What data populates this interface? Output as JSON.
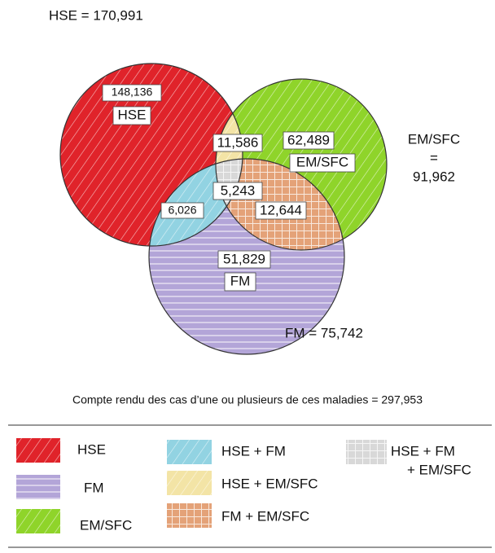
{
  "totals": {
    "hse": "HSE = 170,991",
    "em_sfc": [
      "EM/SFC",
      "=",
      "91,962"
    ],
    "fm": "FM = 75,742"
  },
  "regions": {
    "hse_only": {
      "value": "148,136",
      "label": "HSE"
    },
    "hse_em": {
      "value": "11,586"
    },
    "em_only": {
      "value": "62,489",
      "label": "EM/SFC"
    },
    "all": {
      "value": "5,243"
    },
    "hse_fm": {
      "value": "6,026"
    },
    "fm_em": {
      "value": "12,644"
    },
    "fm_only": {
      "value": "51,829",
      "label": "FM"
    }
  },
  "summary": "Compte rendu des cas d’une ou plusieurs de ces maladies = 297,953",
  "legend": [
    {
      "label": [
        "HSE"
      ]
    },
    {
      "label": [
        "FM"
      ]
    },
    {
      "label": [
        "EM/SFC"
      ]
    },
    {
      "label": [
        "HSE + FM"
      ]
    },
    {
      "label": [
        "HSE + EM/SFC"
      ]
    },
    {
      "label": [
        "FM + EM/SFC"
      ]
    },
    {
      "label": [
        "HSE + FM",
        "+ EM/SFC"
      ]
    }
  ]
}
